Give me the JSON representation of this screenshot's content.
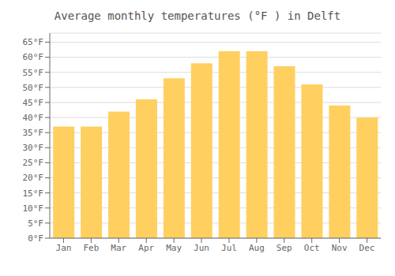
{
  "chart_data": {
    "type": "bar",
    "title": "Average monthly temperatures (°F ) in Delft",
    "categories": [
      "Jan",
      "Feb",
      "Mar",
      "Apr",
      "May",
      "Jun",
      "Jul",
      "Aug",
      "Sep",
      "Oct",
      "Nov",
      "Dec"
    ],
    "values": [
      37,
      37,
      42,
      46,
      53,
      58,
      62,
      62,
      57,
      51,
      44,
      40
    ],
    "color": "#FFD060",
    "ylim": [
      0,
      68
    ],
    "yticks": [
      {
        "value": 0,
        "label": "0°F"
      },
      {
        "value": 5,
        "label": "5°F"
      },
      {
        "value": 10,
        "label": "10°F"
      },
      {
        "value": 15,
        "label": "15°F"
      },
      {
        "value": 20,
        "label": "20°F"
      },
      {
        "value": 25,
        "label": "25°F"
      },
      {
        "value": 30,
        "label": "30°F"
      },
      {
        "value": 35,
        "label": "35°F"
      },
      {
        "value": 40,
        "label": "40°F"
      },
      {
        "value": 45,
        "label": "45°F"
      },
      {
        "value": 50,
        "label": "50°F"
      },
      {
        "value": 55,
        "label": "55°F"
      },
      {
        "value": 60,
        "label": "60°F"
      },
      {
        "value": 65,
        "label": "65°F"
      }
    ],
    "grid": true
  }
}
